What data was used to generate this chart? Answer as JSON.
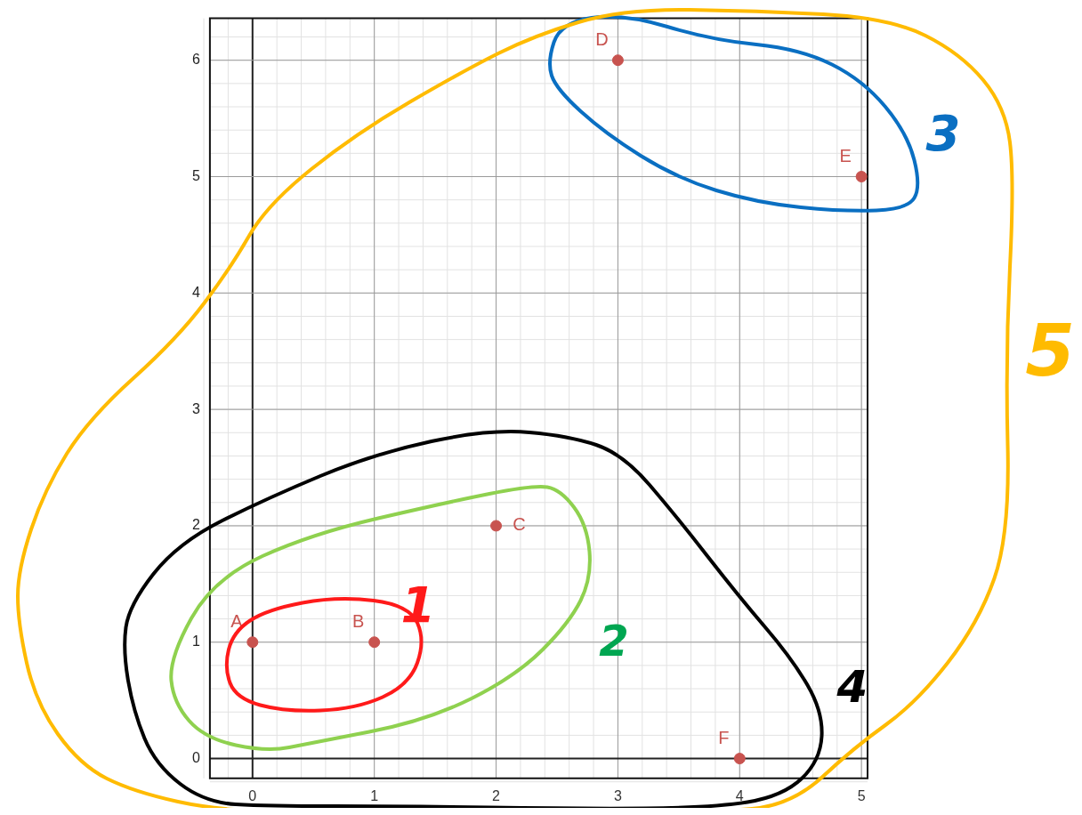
{
  "chart_data": {
    "type": "scatter",
    "x": [
      0,
      1,
      2,
      3,
      5,
      4
    ],
    "series": [
      {
        "color": "#c8534f",
        "values": [
          1,
          1,
          2,
          6,
          5,
          0
        ]
      }
    ],
    "xlim": [
      -0.35,
      5.05
    ],
    "ylim": [
      -0.17,
      6.36
    ],
    "xticks": [
      0,
      1,
      2,
      3,
      4,
      5
    ],
    "yticks": [
      0,
      1,
      2,
      3,
      4,
      5,
      6
    ],
    "grid": true,
    "marker": "circle",
    "legend": false,
    "annotations": [
      {
        "text": "A",
        "x": 0,
        "y": 1
      },
      {
        "text": "B",
        "x": 1,
        "y": 1
      },
      {
        "text": "C",
        "x": 2,
        "y": 2
      },
      {
        "text": "D",
        "x": 3,
        "y": 6
      },
      {
        "text": "E",
        "x": 5,
        "y": 5
      },
      {
        "text": "F",
        "x": 4,
        "y": 0
      },
      "1",
      "2",
      "3",
      "4",
      "5"
    ]
  }
}
